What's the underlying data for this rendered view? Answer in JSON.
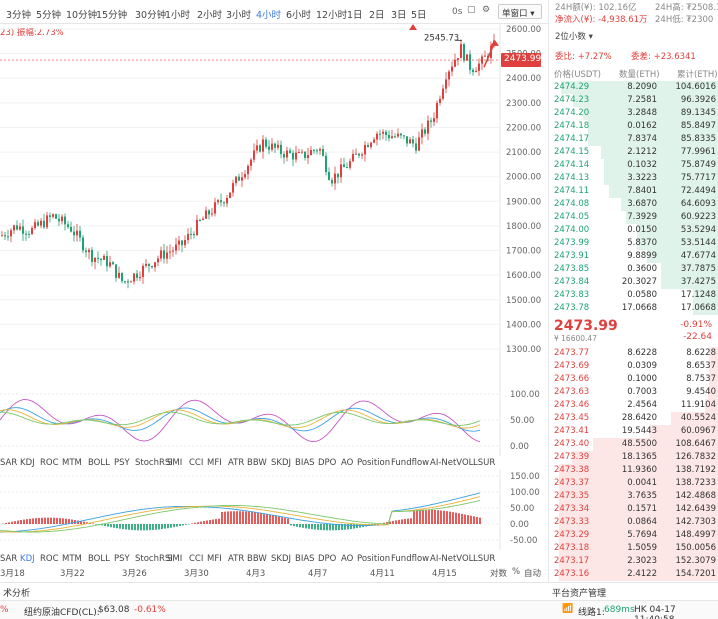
{
  "timeframes": [
    "3分钟",
    "5分钟",
    "10分钟",
    "15分钟",
    "30分钟",
    "1小时",
    "2小时",
    "3小时",
    "4小时",
    "6小时",
    "12小时",
    "1日",
    "2日",
    "3日",
    "5日"
  ],
  "active_timeframe": "4小时",
  "toolbar": {
    "zero_s": "0s",
    "single_window": "单窗口"
  },
  "info_line": {
    "prefix": "23)",
    "label": "振幅:2.73%"
  },
  "price_axis": {
    "ticks": [
      "2600.00",
      "2500.00",
      "2400.00",
      "2300.00",
      "2200.00",
      "2100.00",
      "2000.00",
      "1900.00",
      "1800.00",
      "1700.00",
      "1600.00",
      "1500.00",
      "1400.00",
      "1300.00"
    ],
    "high_label": "2545.73",
    "current_tag": "2473.99"
  },
  "osc1_axis": [
    "100.00",
    "50.00",
    "0.00"
  ],
  "osc2_axis": [
    "150.00",
    "100.00",
    "50.00",
    "0.00",
    "-50.00"
  ],
  "indicator_tabs": [
    "SAR",
    "KDJ",
    "ROC",
    "MTM",
    "BOLL",
    "PSY",
    "StochRSI",
    "SMI",
    "CCI",
    "MFI",
    "ATR",
    "BBW",
    "SKDJ",
    "BIAS",
    "DPO",
    "AO",
    "Position",
    "Fundflow",
    "AI-NetVOL",
    "LSUR"
  ],
  "date_axis": [
    "3月18",
    "3月22",
    "3月26",
    "3月30",
    "4月3",
    "4月7",
    "4月11",
    "4月15"
  ],
  "date_axis_right": [
    "对数",
    "%",
    "自动"
  ],
  "right_panel": {
    "vol24h": "24H额(¥): 102.16亿",
    "net_inflow": "净流入(¥): -4,938.61万",
    "high24h": "24H高: ₮2508.3",
    "low24h": "24H低: ₮2300",
    "decimals": "2位小数",
    "wei_bi": "委比: +7.27%",
    "wei_cha": "委差: +23.6341",
    "headers": [
      "价格(USDT)",
      "数量(ETH)",
      "累计(ETH)"
    ],
    "bids": [
      {
        "p": "2474.29",
        "a": "8.2090",
        "t": "104.6016",
        "w": 0.99
      },
      {
        "p": "2474.23",
        "a": "7.2581",
        "t": "96.3926",
        "w": 0.91
      },
      {
        "p": "2474.20",
        "a": "3.2848",
        "t": "89.1345",
        "w": 0.85
      },
      {
        "p": "2474.18",
        "a": "0.0162",
        "t": "85.8497",
        "w": 0.82
      },
      {
        "p": "2474.17",
        "a": "7.8374",
        "t": "85.8335",
        "w": 0.82
      },
      {
        "p": "2474.15",
        "a": "2.1212",
        "t": "77.9961",
        "w": 0.74
      },
      {
        "p": "2474.14",
        "a": "0.1032",
        "t": "75.8749",
        "w": 0.72
      },
      {
        "p": "2474.13",
        "a": "3.3223",
        "t": "75.7717",
        "w": 0.72
      },
      {
        "p": "2474.11",
        "a": "7.8401",
        "t": "72.4494",
        "w": 0.69
      },
      {
        "p": "2474.08",
        "a": "3.6870",
        "t": "64.6093",
        "w": 0.61
      },
      {
        "p": "2474.05",
        "a": "7.3929",
        "t": "60.9223",
        "w": 0.58
      },
      {
        "p": "2474.00",
        "a": "0.0150",
        "t": "53.5294",
        "w": 0.51
      },
      {
        "p": "2473.99",
        "a": "5.8370",
        "t": "53.5144",
        "w": 0.51
      },
      {
        "p": "2473.91",
        "a": "9.8899",
        "t": "47.6774",
        "w": 0.45
      },
      {
        "p": "2473.85",
        "a": "0.3600",
        "t": "37.7875",
        "w": 0.36
      },
      {
        "p": "2473.84",
        "a": "20.3027",
        "t": "37.4275",
        "w": 0.36
      },
      {
        "p": "2473.83",
        "a": "0.0580",
        "t": "17.1248",
        "w": 0.16
      },
      {
        "p": "2473.78",
        "a": "17.0668",
        "t": "17.0668",
        "w": 0.16
      }
    ],
    "mid": {
      "price": "2473.99",
      "sub": "¥ 16600.47",
      "pct": "-0.91%",
      "chg": "-22.64"
    },
    "asks": [
      {
        "p": "2473.77",
        "a": "8.6228",
        "t": "8.6228",
        "w": 0.06
      },
      {
        "p": "2473.69",
        "a": "0.0309",
        "t": "8.6537",
        "w": 0.06
      },
      {
        "p": "2473.66",
        "a": "0.1000",
        "t": "8.7537",
        "w": 0.06
      },
      {
        "p": "2473.63",
        "a": "0.7003",
        "t": "9.4540",
        "w": 0.07
      },
      {
        "p": "2473.46",
        "a": "2.4564",
        "t": "11.9104",
        "w": 0.09
      },
      {
        "p": "2473.45",
        "a": "28.6420",
        "t": "40.5524",
        "w": 0.3
      },
      {
        "p": "2473.41",
        "a": "19.5443",
        "t": "60.0967",
        "w": 0.44
      },
      {
        "p": "2473.40",
        "a": "48.5500",
        "t": "108.6467",
        "w": 0.79
      },
      {
        "p": "2473.39",
        "a": "18.1365",
        "t": "126.7832",
        "w": 0.92
      },
      {
        "p": "2473.38",
        "a": "11.9360",
        "t": "138.7192",
        "w": 1.0
      },
      {
        "p": "2473.37",
        "a": "0.0041",
        "t": "138.7233",
        "w": 1.0
      },
      {
        "p": "2473.35",
        "a": "3.7635",
        "t": "142.4868",
        "w": 1.0
      },
      {
        "p": "2473.34",
        "a": "0.1571",
        "t": "142.6439",
        "w": 1.0
      },
      {
        "p": "2473.33",
        "a": "0.0864",
        "t": "142.7303",
        "w": 1.0
      },
      {
        "p": "2473.29",
        "a": "5.7694",
        "t": "148.4997",
        "w": 1.0
      },
      {
        "p": "2473.18",
        "a": "1.5059",
        "t": "150.0056",
        "w": 1.0
      },
      {
        "p": "2473.17",
        "a": "2.3023",
        "t": "152.3079",
        "w": 1.0
      },
      {
        "p": "2473.16",
        "a": "2.4122",
        "t": "154.7201",
        "w": 1.0
      }
    ]
  },
  "bottom": {
    "analysis": "术分析",
    "asset_mgmt": "平台资产管理",
    "pct": "%",
    "crude": "纽约原油CFD(CL):",
    "crude_val": "$63.08",
    "crude_chg": "-0.61%",
    "line": "线路1:",
    "ms": "689ms",
    "time": "HK 04-17 11:40:58"
  },
  "colors": {
    "up": "#e0403d",
    "down": "#1ea372",
    "accent": "#3d7be0"
  }
}
